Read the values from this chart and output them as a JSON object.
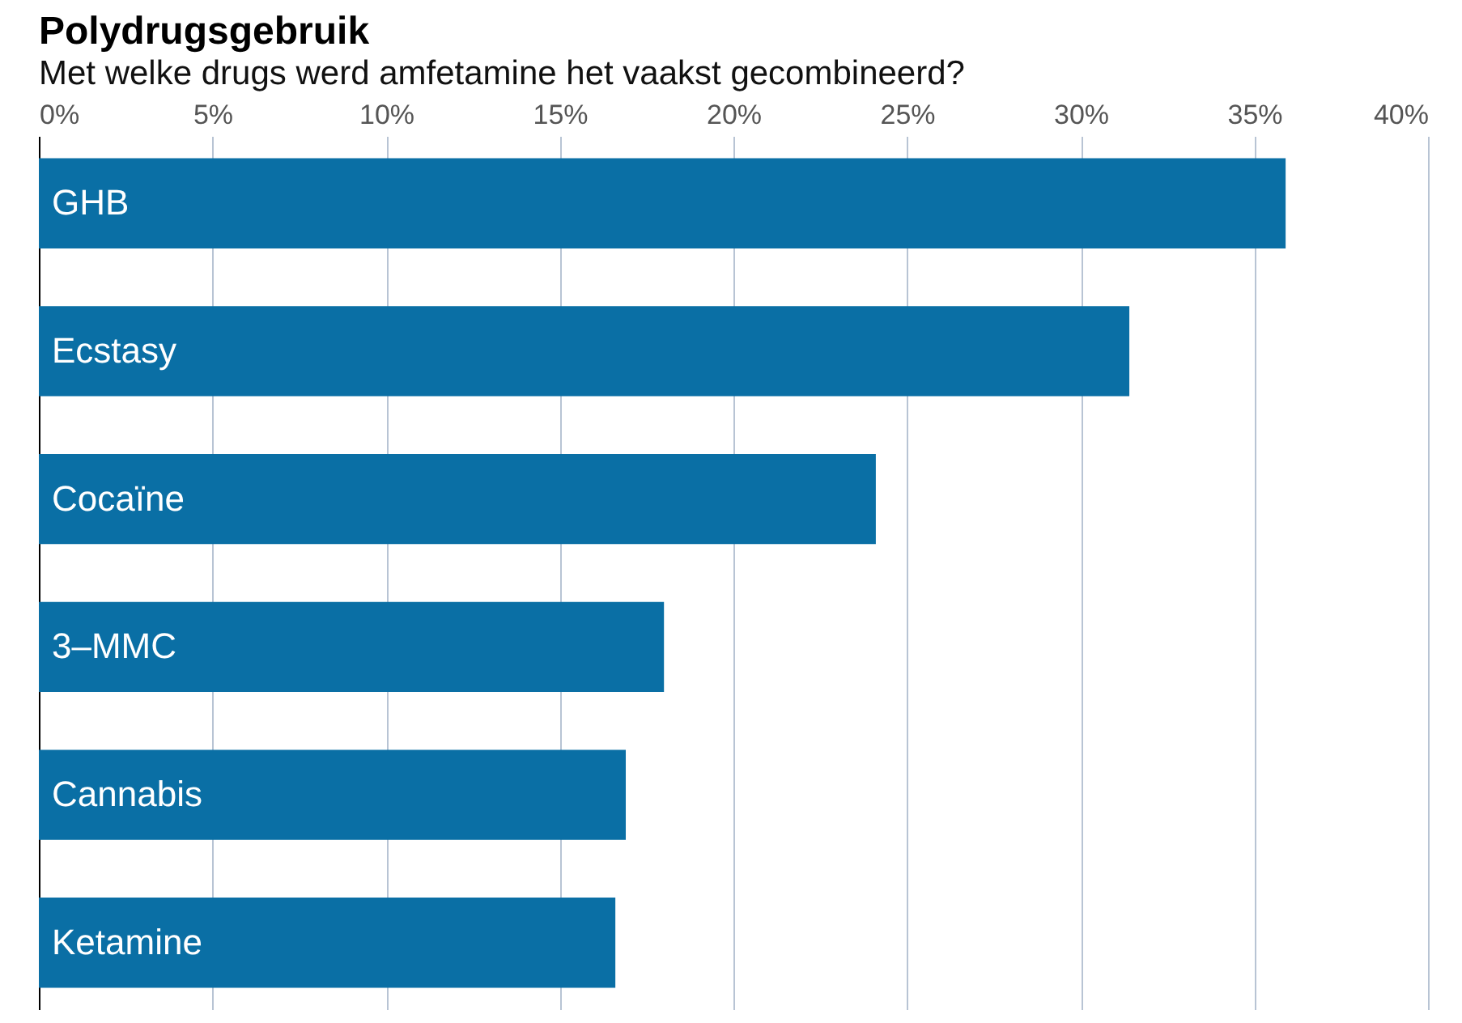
{
  "chart_data": {
    "type": "bar",
    "orientation": "horizontal",
    "title": "Polydrugsgebruik",
    "subtitle": "Met welke drugs werd amfetamine het vaakst gecombineerd?",
    "categories": [
      "GHB",
      "Ecstasy",
      "Cocaïne",
      "3–MMC",
      "Cannabis",
      "Ketamine"
    ],
    "values": [
      35.9,
      31.4,
      24.1,
      18.0,
      16.9,
      16.6
    ],
    "color": "#0a6fa5",
    "xlim": [
      0,
      40
    ],
    "xticks": [
      {
        "value": 0,
        "label": "0%"
      },
      {
        "value": 5,
        "label": "5%"
      },
      {
        "value": 10,
        "label": "10%"
      },
      {
        "value": 15,
        "label": "15%"
      },
      {
        "value": 20,
        "label": "20%"
      },
      {
        "value": 25,
        "label": "25%"
      },
      {
        "value": 30,
        "label": "30%"
      },
      {
        "value": 35,
        "label": "35%"
      },
      {
        "value": 40,
        "label": "40%"
      }
    ],
    "grid": "x"
  }
}
